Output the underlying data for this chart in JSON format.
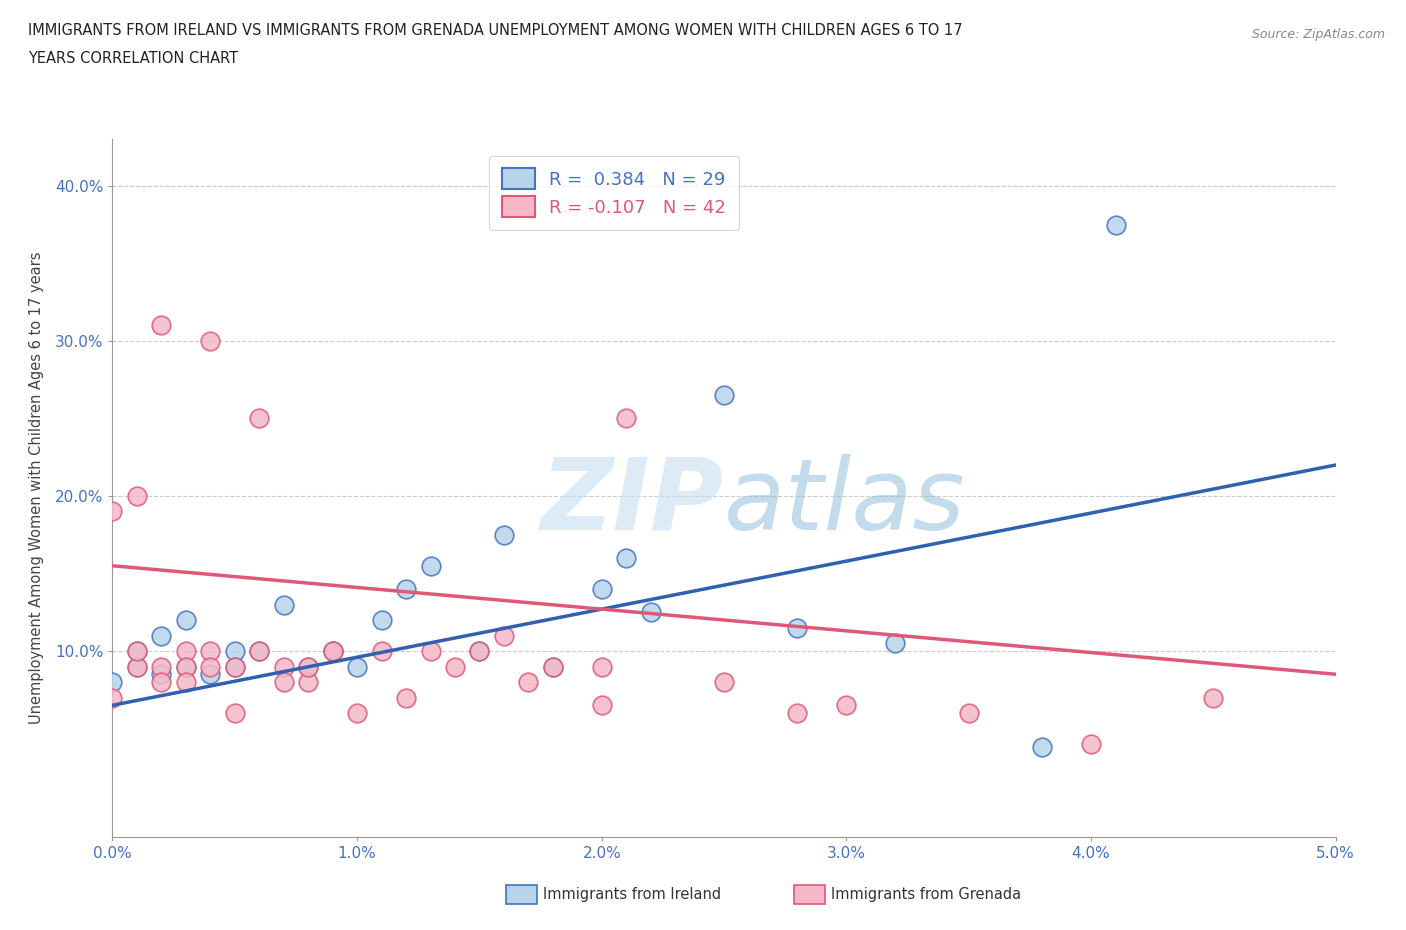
{
  "title_line1": "IMMIGRANTS FROM IRELAND VS IMMIGRANTS FROM GRENADA UNEMPLOYMENT AMONG WOMEN WITH CHILDREN AGES 6 TO 17",
  "title_line2": "YEARS CORRELATION CHART",
  "source": "Source: ZipAtlas.com",
  "ylabel": "Unemployment Among Women with Children Ages 6 to 17 years",
  "xlim": [
    0.0,
    0.05
  ],
  "ylim": [
    -0.02,
    0.43
  ],
  "xticks": [
    0.0,
    0.01,
    0.02,
    0.03,
    0.04,
    0.05
  ],
  "xticklabels": [
    "0.0%",
    "1.0%",
    "2.0%",
    "3.0%",
    "4.0%",
    "5.0%"
  ],
  "yticks": [
    0.1,
    0.2,
    0.3,
    0.4
  ],
  "yticklabels": [
    "10.0%",
    "20.0%",
    "30.0%",
    "40.0%"
  ],
  "legend1_label": "R =  0.384   N = 29",
  "legend2_label": "R = -0.107   N = 42",
  "ireland_fill_color": "#b8d4ea",
  "ireland_edge_color": "#4472c4",
  "grenada_fill_color": "#f4b8c8",
  "grenada_edge_color": "#e05878",
  "ireland_line_color": "#3060b0",
  "grenada_line_color": "#e05878",
  "watermark_color": "#cde4f5",
  "background_color": "#ffffff",
  "grid_color": "#cccccc",
  "ireland_scatter_x": [
    0.0,
    0.001,
    0.001,
    0.002,
    0.002,
    0.003,
    0.003,
    0.004,
    0.005,
    0.005,
    0.006,
    0.007,
    0.008,
    0.009,
    0.01,
    0.011,
    0.012,
    0.013,
    0.015,
    0.016,
    0.018,
    0.02,
    0.021,
    0.022,
    0.025,
    0.028,
    0.032,
    0.038,
    0.041
  ],
  "ireland_scatter_y": [
    0.08,
    0.09,
    0.1,
    0.085,
    0.11,
    0.09,
    0.12,
    0.085,
    0.1,
    0.09,
    0.1,
    0.13,
    0.09,
    0.1,
    0.09,
    0.12,
    0.14,
    0.155,
    0.1,
    0.175,
    0.09,
    0.14,
    0.16,
    0.125,
    0.265,
    0.115,
    0.105,
    0.038,
    0.375
  ],
  "grenada_scatter_x": [
    0.0,
    0.0,
    0.001,
    0.001,
    0.001,
    0.002,
    0.002,
    0.002,
    0.003,
    0.003,
    0.003,
    0.004,
    0.004,
    0.004,
    0.005,
    0.005,
    0.006,
    0.006,
    0.007,
    0.007,
    0.008,
    0.008,
    0.009,
    0.009,
    0.01,
    0.011,
    0.012,
    0.013,
    0.014,
    0.015,
    0.016,
    0.017,
    0.018,
    0.02,
    0.02,
    0.021,
    0.025,
    0.028,
    0.03,
    0.035,
    0.04,
    0.045
  ],
  "grenada_scatter_y": [
    0.07,
    0.19,
    0.09,
    0.1,
    0.2,
    0.09,
    0.31,
    0.08,
    0.1,
    0.09,
    0.08,
    0.1,
    0.09,
    0.3,
    0.06,
    0.09,
    0.1,
    0.25,
    0.09,
    0.08,
    0.08,
    0.09,
    0.1,
    0.1,
    0.06,
    0.1,
    0.07,
    0.1,
    0.09,
    0.1,
    0.11,
    0.08,
    0.09,
    0.09,
    0.065,
    0.25,
    0.08,
    0.06,
    0.065,
    0.06,
    0.04,
    0.07
  ],
  "ireland_trend_x": [
    0.0,
    0.05
  ],
  "ireland_trend_y": [
    0.065,
    0.22
  ],
  "grenada_trend_x": [
    0.0,
    0.05
  ],
  "grenada_trend_y": [
    0.155,
    0.085
  ],
  "legend_ireland_color": "#b8d4ea",
  "legend_grenada_color": "#f4b8c8"
}
